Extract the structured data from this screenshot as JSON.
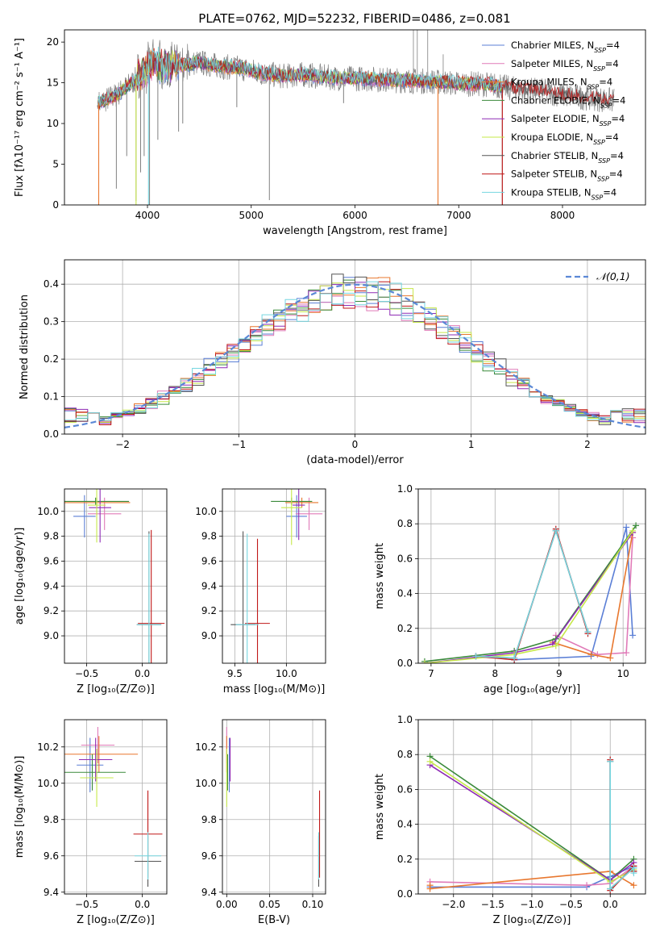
{
  "title": "PLATE=0762, MJD=52232, FIBERID=0486, z=0.081",
  "colors": {
    "Chabrier MILES": "#5b7fd6",
    "Salpeter MILES": "#e07ab8",
    "Kroupa MILES": "#e8772e",
    "Chabrier ELODIE": "#3a8a3a",
    "Salpeter ELODIE": "#8e2bb5",
    "Kroupa ELODIE": "#c6e84a",
    "Chabrier STELIB": "#555555",
    "Salpeter STELIB": "#c01818",
    "Kroupa STELIB": "#76d6e0",
    "data": "#808080",
    "gauss": "#5b88d6"
  },
  "chart_data": [
    {
      "id": "spectrum",
      "type": "line",
      "title": "PLATE=0762, MJD=52232, FIBERID=0486, z=0.081",
      "xlabel": "wavelength [Angstrom, rest frame]",
      "ylabel": "Flux [fλ10⁻¹⁷ erg cm⁻² s⁻¹ A⁻¹]",
      "xlim": [
        3200,
        8800
      ],
      "ylim": [
        0,
        21.5
      ],
      "xticks": [
        4000,
        5000,
        6000,
        7000,
        8000
      ],
      "yticks": [
        0,
        5,
        10,
        15,
        20
      ],
      "grid": false,
      "legend_position": "top-right",
      "legend": [
        "Chabrier MILES, N_SSP=4",
        "Salpeter MILES, N_SSP=4",
        "Kroupa MILES, N_SSP=4",
        "Chabrier ELODIE, N_SSP=4",
        "Salpeter ELODIE, N_SSP=4",
        "Kroupa ELODIE, N_SSP=4",
        "Chabrier STELIB, N_SSP=4",
        "Salpeter STELIB, N_SSP=4",
        "Kroupa STELIB, N_SSP=4"
      ],
      "legend_labels": [
        {
          "name": "Chabrier MILES",
          "color": "#5b7fd6"
        },
        {
          "name": "Salpeter MILES",
          "color": "#e07ab8"
        },
        {
          "name": "Kroupa MILES",
          "color": "#e8772e"
        },
        {
          "name": "Chabrier ELODIE",
          "color": "#3a8a3a"
        },
        {
          "name": "Salpeter ELODIE",
          "color": "#8e2bb5"
        },
        {
          "name": "Kroupa ELODIE",
          "color": "#c6e84a"
        },
        {
          "name": "Chabrier STELIB",
          "color": "#555555"
        },
        {
          "name": "Salpeter STELIB",
          "color": "#c01818"
        },
        {
          "name": "Kroupa STELIB",
          "color": "#76d6e0"
        }
      ],
      "legend_suffix": ", N_SSP=4",
      "continuum": [
        [
          3530,
          12.5
        ],
        [
          3700,
          13.5
        ],
        [
          3900,
          15.5
        ],
        [
          4050,
          17.5
        ],
        [
          4200,
          17.0
        ],
        [
          4350,
          17.2
        ],
        [
          4500,
          17.5
        ],
        [
          4700,
          17.0
        ],
        [
          4900,
          16.8
        ],
        [
          5100,
          16.2
        ],
        [
          5300,
          15.8
        ],
        [
          5500,
          16.0
        ],
        [
          5800,
          15.6
        ],
        [
          6100,
          15.5
        ],
        [
          6400,
          15.3
        ],
        [
          6700,
          15.2
        ],
        [
          7000,
          14.9
        ],
        [
          7300,
          14.8
        ],
        [
          7500,
          14.3
        ],
        [
          7800,
          14.0
        ],
        [
          8000,
          13.5
        ],
        [
          8200,
          13.2
        ],
        [
          8500,
          12.8
        ]
      ],
      "dips": [
        [
          3530,
          0.3
        ],
        [
          3700,
          2.0
        ],
        [
          3800,
          6.0
        ],
        [
          3890,
          0.5
        ],
        [
          3934,
          4.0
        ],
        [
          3968,
          6.0
        ],
        [
          4020,
          0.0
        ],
        [
          4100,
          8.0
        ],
        [
          4300,
          9.0
        ],
        [
          4340,
          10.0
        ],
        [
          4861,
          12.0
        ],
        [
          5175,
          0.6
        ],
        [
          5890,
          12.5
        ],
        [
          6800,
          0.0
        ],
        [
          7420,
          0.0
        ]
      ],
      "spikes": [
        [
          6563,
          21.5
        ],
        [
          6600,
          21.5
        ],
        [
          6700,
          21.5
        ],
        [
          6850,
          18.5
        ],
        [
          7400,
          16.0
        ]
      ]
    },
    {
      "id": "residual-hist",
      "type": "line",
      "xlabel": "(data-model)/error",
      "ylabel": "Normed distribution",
      "xlim": [
        -2.5,
        2.5
      ],
      "ylim": [
        0,
        0.465
      ],
      "xticks": [
        -2,
        -1,
        0,
        1,
        2
      ],
      "xtick_labels": [
        "−2",
        "−1",
        "0",
        "1",
        "2"
      ],
      "yticks": [
        0.0,
        0.1,
        0.2,
        0.3,
        0.4
      ],
      "grid": true,
      "legend_position": "top-right",
      "legend_label": "𝒩(0,1)",
      "gauss_mean": 0,
      "gauss_sigma": 1,
      "bin_width": 0.1
    },
    {
      "id": "age-vs-Z",
      "type": "scatter",
      "xlabel": "Z [log₁₀(Z/Z⊙)]",
      "ylabel": "age  [log₁₀(age/yr)]",
      "xlim": [
        -0.7,
        0.22
      ],
      "ylim": [
        8.78,
        10.18
      ],
      "xticks": [
        -0.5,
        0.0
      ],
      "xtick_labels": [
        "−0.5",
        "0.0"
      ],
      "yticks": [
        9.0,
        9.2,
        9.4,
        9.6,
        9.8,
        10.0
      ],
      "grid": true,
      "points": [
        {
          "s": "Chabrier MILES",
          "x": -0.52,
          "y": 9.96,
          "ex": 0.1,
          "ey": 0.17
        },
        {
          "s": "Salpeter MILES",
          "x": -0.34,
          "y": 9.98,
          "ex": 0.15,
          "ey": 0.13
        },
        {
          "s": "Kroupa MILES",
          "x": -0.41,
          "y": 10.07,
          "ex": 0.3,
          "ey": 0.04
        },
        {
          "s": "Chabrier ELODIE",
          "x": -0.42,
          "y": 10.08,
          "ex": 0.3,
          "ey": 0.03
        },
        {
          "s": "Salpeter ELODIE",
          "x": -0.38,
          "y": 10.03,
          "ex": 0.1,
          "ey": 0.28
        },
        {
          "s": "Kroupa ELODIE",
          "x": -0.41,
          "y": 10.05,
          "ex": 0.08,
          "ey": 0.3
        },
        {
          "s": "Chabrier STELIB",
          "x": 0.06,
          "y": 9.09,
          "ex": 0.11,
          "ey": 0.75
        },
        {
          "s": "Salpeter STELIB",
          "x": 0.08,
          "y": 9.1,
          "ex": 0.12,
          "ey": 0.75
        },
        {
          "s": "Kroupa STELIB",
          "x": 0.06,
          "y": 9.09,
          "ex": 0.11,
          "ey": 0.73
        }
      ]
    },
    {
      "id": "age-vs-mass",
      "type": "scatter",
      "xlabel": "mass [log₁₀(M/M⊙)]",
      "ylabel": "",
      "xlim": [
        9.38,
        10.38
      ],
      "ylim": [
        8.78,
        10.18
      ],
      "xticks": [
        9.5,
        10.0
      ],
      "xtick_labels": [
        "9.5",
        "10.0"
      ],
      "yticks": [
        9.0,
        9.2,
        9.4,
        9.6,
        9.8,
        10.0
      ],
      "grid": true,
      "points": [
        {
          "s": "Chabrier MILES",
          "x": 10.1,
          "y": 9.96,
          "ex": 0.1,
          "ey": 0.17
        },
        {
          "s": "Salpeter MILES",
          "x": 10.22,
          "y": 9.98,
          "ex": 0.13,
          "ey": 0.13
        },
        {
          "s": "Kroupa MILES",
          "x": 10.15,
          "y": 10.07,
          "ex": 0.16,
          "ey": 0.04
        },
        {
          "s": "Chabrier ELODIE",
          "x": 10.05,
          "y": 10.08,
          "ex": 0.2,
          "ey": 0.03
        },
        {
          "s": "Salpeter ELODIE",
          "x": 10.12,
          "y": 10.05,
          "ex": 0.06,
          "ey": 0.28
        },
        {
          "s": "Kroupa ELODIE",
          "x": 10.05,
          "y": 10.03,
          "ex": 0.1,
          "ey": 0.3
        },
        {
          "s": "Chabrier STELIB",
          "x": 9.58,
          "y": 9.09,
          "ex": 0.12,
          "ey": 0.75
        },
        {
          "s": "Salpeter STELIB",
          "x": 9.72,
          "y": 9.1,
          "ex": 0.12,
          "ey": 0.68
        },
        {
          "s": "Kroupa STELIB",
          "x": 9.62,
          "y": 9.09,
          "ex": 0.11,
          "ey": 0.73
        }
      ]
    },
    {
      "id": "weight-vs-age",
      "type": "line",
      "xlabel": "age  [log₁₀(age/yr)]",
      "ylabel": "mass weight",
      "xlim": [
        6.8,
        10.35
      ],
      "ylim": [
        0,
        1.0
      ],
      "xticks": [
        7,
        8,
        9,
        10
      ],
      "yticks": [
        0.0,
        0.2,
        0.4,
        0.6,
        0.8,
        1.0
      ],
      "grid": true,
      "series": [
        {
          "name": "Chabrier MILES",
          "x": [
            8.3,
            9.5,
            10.05,
            10.15
          ],
          "y": [
            0.02,
            0.04,
            0.78,
            0.16
          ]
        },
        {
          "name": "Salpeter MILES",
          "x": [
            8.95,
            9.6,
            10.05,
            10.15
          ],
          "y": [
            0.16,
            0.05,
            0.06,
            0.72
          ]
        },
        {
          "name": "Kroupa MILES",
          "x": [
            8.9,
            9.5,
            9.8,
            10.15
          ],
          "y": [
            0.12,
            0.05,
            0.03,
            0.75
          ]
        },
        {
          "name": "Chabrier ELODIE",
          "x": [
            6.9,
            8.3,
            8.95,
            10.2
          ],
          "y": [
            0.01,
            0.07,
            0.14,
            0.79
          ]
        },
        {
          "name": "Salpeter ELODIE",
          "x": [
            6.9,
            8.3,
            8.9,
            10.15
          ],
          "y": [
            0.0,
            0.06,
            0.11,
            0.75
          ]
        },
        {
          "name": "Kroupa ELODIE",
          "x": [
            6.9,
            8.3,
            8.95,
            10.15
          ],
          "y": [
            0.0,
            0.05,
            0.1,
            0.76
          ]
        },
        {
          "name": "Chabrier STELIB",
          "x": [
            7.7,
            8.3,
            8.95,
            9.45
          ],
          "y": [
            0.04,
            0.03,
            0.76,
            0.18
          ]
        },
        {
          "name": "Salpeter STELIB",
          "x": [
            7.7,
            8.3,
            8.95,
            9.45
          ],
          "y": [
            0.04,
            0.02,
            0.77,
            0.17
          ]
        },
        {
          "name": "Kroupa STELIB",
          "x": [
            7.7,
            8.3,
            8.95,
            9.45
          ],
          "y": [
            0.04,
            0.03,
            0.76,
            0.18
          ]
        }
      ]
    },
    {
      "id": "mass-vs-Z",
      "type": "scatter",
      "xlabel": "Z [log₁₀(Z/Z⊙)]",
      "ylabel": "mass [log₁₀(M/M⊙)]",
      "xlim": [
        -0.7,
        0.22
      ],
      "ylim": [
        9.39,
        10.35
      ],
      "xticks": [
        -0.5,
        0.0
      ],
      "xtick_labels": [
        "−0.5",
        "0.0"
      ],
      "yticks": [
        9.4,
        9.6,
        9.8,
        10.0,
        10.2
      ],
      "grid": true,
      "points": [
        {
          "s": "Chabrier MILES",
          "x": -0.47,
          "y": 10.1,
          "ex": 0.12,
          "ey": 0.15
        },
        {
          "s": "Salpeter MILES",
          "x": -0.4,
          "y": 10.21,
          "ex": 0.15,
          "ey": 0.1
        },
        {
          "s": "Kroupa MILES",
          "x": -0.39,
          "y": 10.16,
          "ex": 0.35,
          "ey": 0.1
        },
        {
          "s": "Chabrier ELODIE",
          "x": -0.45,
          "y": 10.06,
          "ex": 0.3,
          "ey": 0.1
        },
        {
          "s": "Salpeter ELODIE",
          "x": -0.42,
          "y": 10.13,
          "ex": 0.15,
          "ey": 0.12
        },
        {
          "s": "Kroupa ELODIE",
          "x": -0.41,
          "y": 10.03,
          "ex": 0.15,
          "ey": 0.16
        },
        {
          "s": "Chabrier STELIB",
          "x": 0.05,
          "y": 9.57,
          "ex": 0.12,
          "ey": 0.14
        },
        {
          "s": "Salpeter STELIB",
          "x": 0.05,
          "y": 9.72,
          "ex": 0.13,
          "ey": 0.24
        },
        {
          "s": "Kroupa STELIB",
          "x": 0.05,
          "y": 9.6,
          "ex": 0.12,
          "ey": 0.13
        }
      ]
    },
    {
      "id": "mass-vs-EBV",
      "type": "scatter",
      "xlabel": "E(B-V)",
      "ylabel": "",
      "xlim": [
        -0.005,
        0.115
      ],
      "ylim": [
        9.39,
        10.35
      ],
      "xticks": [
        0.0,
        0.05,
        0.1
      ],
      "xtick_labels": [
        "0.00",
        "0.05",
        "0.10"
      ],
      "yticks": [
        9.4,
        9.6,
        9.8,
        10.0,
        10.2
      ],
      "grid": true,
      "points": [
        {
          "s": "Chabrier MILES",
          "x": 0.003,
          "y": 10.1,
          "ex": 0.0,
          "ey": 0.15
        },
        {
          "s": "Salpeter MILES",
          "x": 0.0,
          "y": 10.21,
          "ex": 0.0,
          "ey": 0.1
        },
        {
          "s": "Kroupa MILES",
          "x": 0.0,
          "y": 10.16,
          "ex": 0.0,
          "ey": 0.1
        },
        {
          "s": "Chabrier ELODIE",
          "x": 0.001,
          "y": 10.06,
          "ex": 0.0,
          "ey": 0.1
        },
        {
          "s": "Salpeter ELODIE",
          "x": 0.004,
          "y": 10.13,
          "ex": 0.0,
          "ey": 0.12
        },
        {
          "s": "Kroupa ELODIE",
          "x": 0.0,
          "y": 10.03,
          "ex": 0.0,
          "ey": 0.16
        },
        {
          "s": "Chabrier STELIB",
          "x": 0.107,
          "y": 9.57,
          "ex": 0.0,
          "ey": 0.14
        },
        {
          "s": "Salpeter STELIB",
          "x": 0.108,
          "y": 9.72,
          "ex": 0.0,
          "ey": 0.24
        },
        {
          "s": "Kroupa STELIB",
          "x": 0.107,
          "y": 9.6,
          "ex": 0.0,
          "ey": 0.13
        }
      ]
    },
    {
      "id": "weight-vs-Z",
      "type": "line",
      "xlabel": "Z [log₁₀(Z/Z⊙)]",
      "ylabel": "mass weight",
      "xlim": [
        -2.45,
        0.45
      ],
      "ylim": [
        0,
        1.0
      ],
      "xticks": [
        -2.0,
        -1.5,
        -1.0,
        -0.5,
        0.0
      ],
      "xtick_labels": [
        "−2.0",
        "−1.5",
        "−1.0",
        "−0.5",
        "0.0"
      ],
      "yticks": [
        0.0,
        0.2,
        0.4,
        0.6,
        0.8,
        1.0
      ],
      "grid": true,
      "series": [
        {
          "name": "Chabrier MILES",
          "x": [
            -2.3,
            -0.3,
            0.0,
            0.3
          ],
          "y": [
            0.04,
            0.04,
            0.1,
            0.16
          ]
        },
        {
          "name": "Salpeter MILES",
          "x": [
            -2.3,
            -0.3,
            0.0,
            0.3
          ],
          "y": [
            0.07,
            0.05,
            0.06,
            0.16
          ]
        },
        {
          "name": "Kroupa MILES",
          "x": [
            -2.3,
            -2.3,
            0.0,
            0.3
          ],
          "y": [
            0.05,
            0.03,
            0.13,
            0.05
          ]
        },
        {
          "name": "Chabrier ELODIE",
          "x": [
            -2.3,
            0.0,
            0.3
          ],
          "y": [
            0.79,
            0.08,
            0.2
          ]
        },
        {
          "name": "Salpeter ELODIE",
          "x": [
            -2.3,
            0.0,
            0.3
          ],
          "y": [
            0.74,
            0.08,
            0.18
          ]
        },
        {
          "name": "Kroupa ELODIE",
          "x": [
            -2.3,
            0.0,
            0.3
          ],
          "y": [
            0.76,
            0.07,
            0.14
          ]
        },
        {
          "name": "Chabrier STELIB",
          "x": [
            0.0,
            0.0,
            0.3,
            0.3
          ],
          "y": [
            0.76,
            0.03,
            0.15,
            0.13
          ]
        },
        {
          "name": "Salpeter STELIB",
          "x": [
            0.0,
            0.0,
            0.3,
            0.3
          ],
          "y": [
            0.77,
            0.02,
            0.16,
            0.13
          ]
        },
        {
          "name": "Kroupa STELIB",
          "x": [
            0.0,
            0.0,
            0.3,
            0.3
          ],
          "y": [
            0.76,
            0.03,
            0.15,
            0.12
          ]
        }
      ]
    }
  ]
}
